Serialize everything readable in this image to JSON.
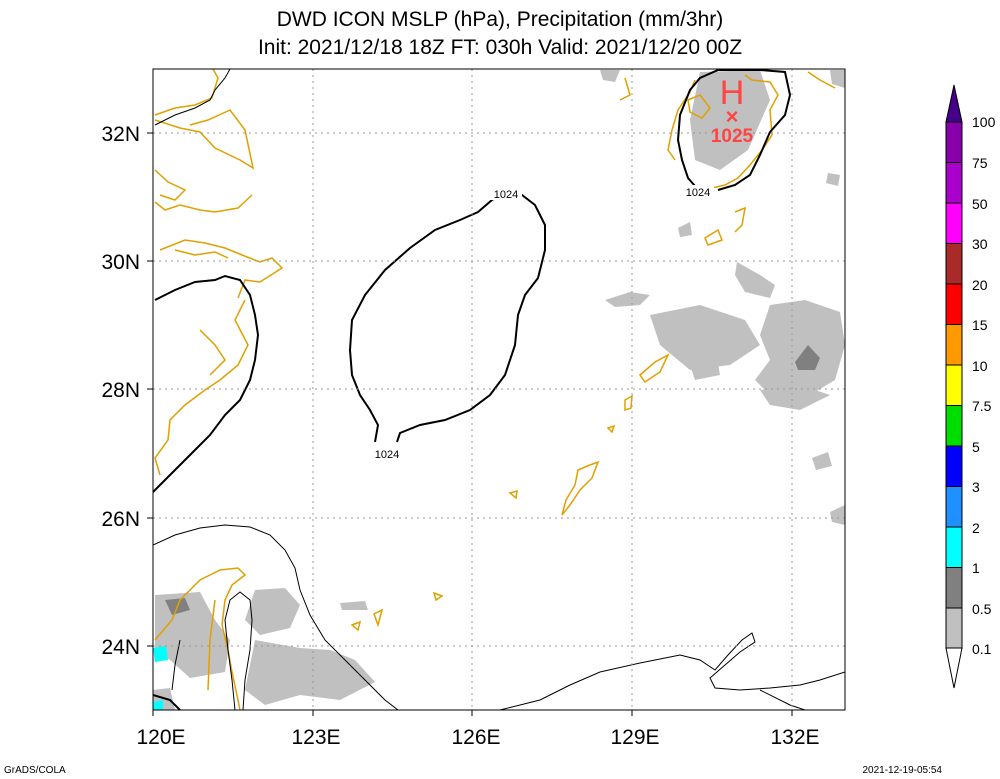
{
  "title": {
    "line1": "DWD ICON MSLP (hPa), Precipitation (mm/3hr)",
    "line2": "Init: 2021/12/18 18Z  FT: 030h  Valid: 2021/12/20 00Z"
  },
  "axes": {
    "x_ticks": [
      "120E",
      "123E",
      "126E",
      "129E",
      "132E"
    ],
    "y_ticks": [
      "32N",
      "30N",
      "28N",
      "26N",
      "24N"
    ],
    "x_range_deg": [
      120,
      133
    ],
    "y_range_deg": [
      23,
      33
    ]
  },
  "isobar_labels": [
    "1024",
    "1024",
    "1024"
  ],
  "high_center": {
    "symbol": "H",
    "marker": "×",
    "pressure": "1025"
  },
  "colorbar": {
    "levels": [
      "100",
      "75",
      "50",
      "30",
      "20",
      "15",
      "10",
      "7.5",
      "5",
      "3",
      "2",
      "1",
      "0.5",
      "0.1"
    ],
    "colors": [
      "#8800aa",
      "#aa00cc",
      "#ff00ff",
      "#aa2a2a",
      "#ff0000",
      "#ff9900",
      "#ffff00",
      "#00dd00",
      "#0000ff",
      "#1e90ff",
      "#00ffff",
      "#808080",
      "#c0c0c0"
    ]
  },
  "footer": {
    "left": "GrADS/COLA",
    "right": "2021-12-19-05:54"
  },
  "colors": {
    "coastline": "#e0a000",
    "isobar": "#000000",
    "high": "#ff4444",
    "precip_light": "#c0c0c0",
    "precip_mid": "#808080",
    "precip_cyan": "#00ffff",
    "grid": "#999999"
  }
}
